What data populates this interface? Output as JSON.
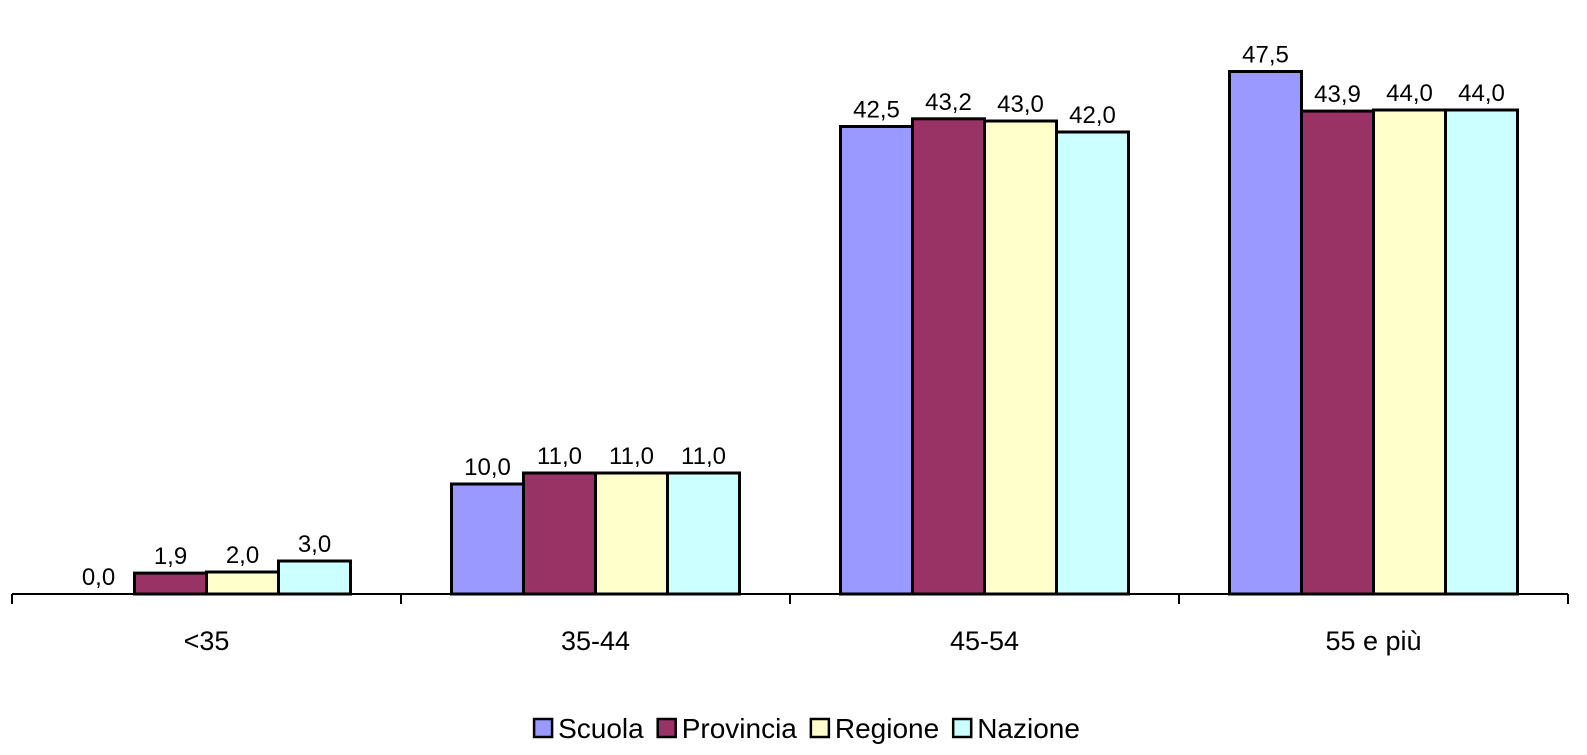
{
  "chart_data": {
    "type": "bar",
    "categories": [
      "<35",
      "35-44",
      "45-54",
      "55 e più"
    ],
    "series": [
      {
        "name": "Scuola",
        "color": "#9999FF",
        "values": [
          0.0,
          10.0,
          42.5,
          47.5
        ],
        "labels": [
          "0,0",
          "10,0",
          "42,5",
          "47,5"
        ]
      },
      {
        "name": "Provincia",
        "color": "#993366",
        "values": [
          1.9,
          11.0,
          43.2,
          43.9
        ],
        "labels": [
          "1,9",
          "11,0",
          "43,2",
          "43,9"
        ]
      },
      {
        "name": "Regione",
        "color": "#FFFFCC",
        "values": [
          2.0,
          11.0,
          43.0,
          44.0
        ],
        "labels": [
          "2,0",
          "11,0",
          "43,0",
          "44,0"
        ]
      },
      {
        "name": "Nazione",
        "color": "#CCFFFF",
        "values": [
          3.0,
          11.0,
          42.0,
          44.0
        ],
        "labels": [
          "3,0",
          "11,0",
          "42,0",
          "44,0"
        ]
      }
    ],
    "ylim": [
      0,
      50
    ],
    "grid": false,
    "legend_position": "bottom"
  }
}
